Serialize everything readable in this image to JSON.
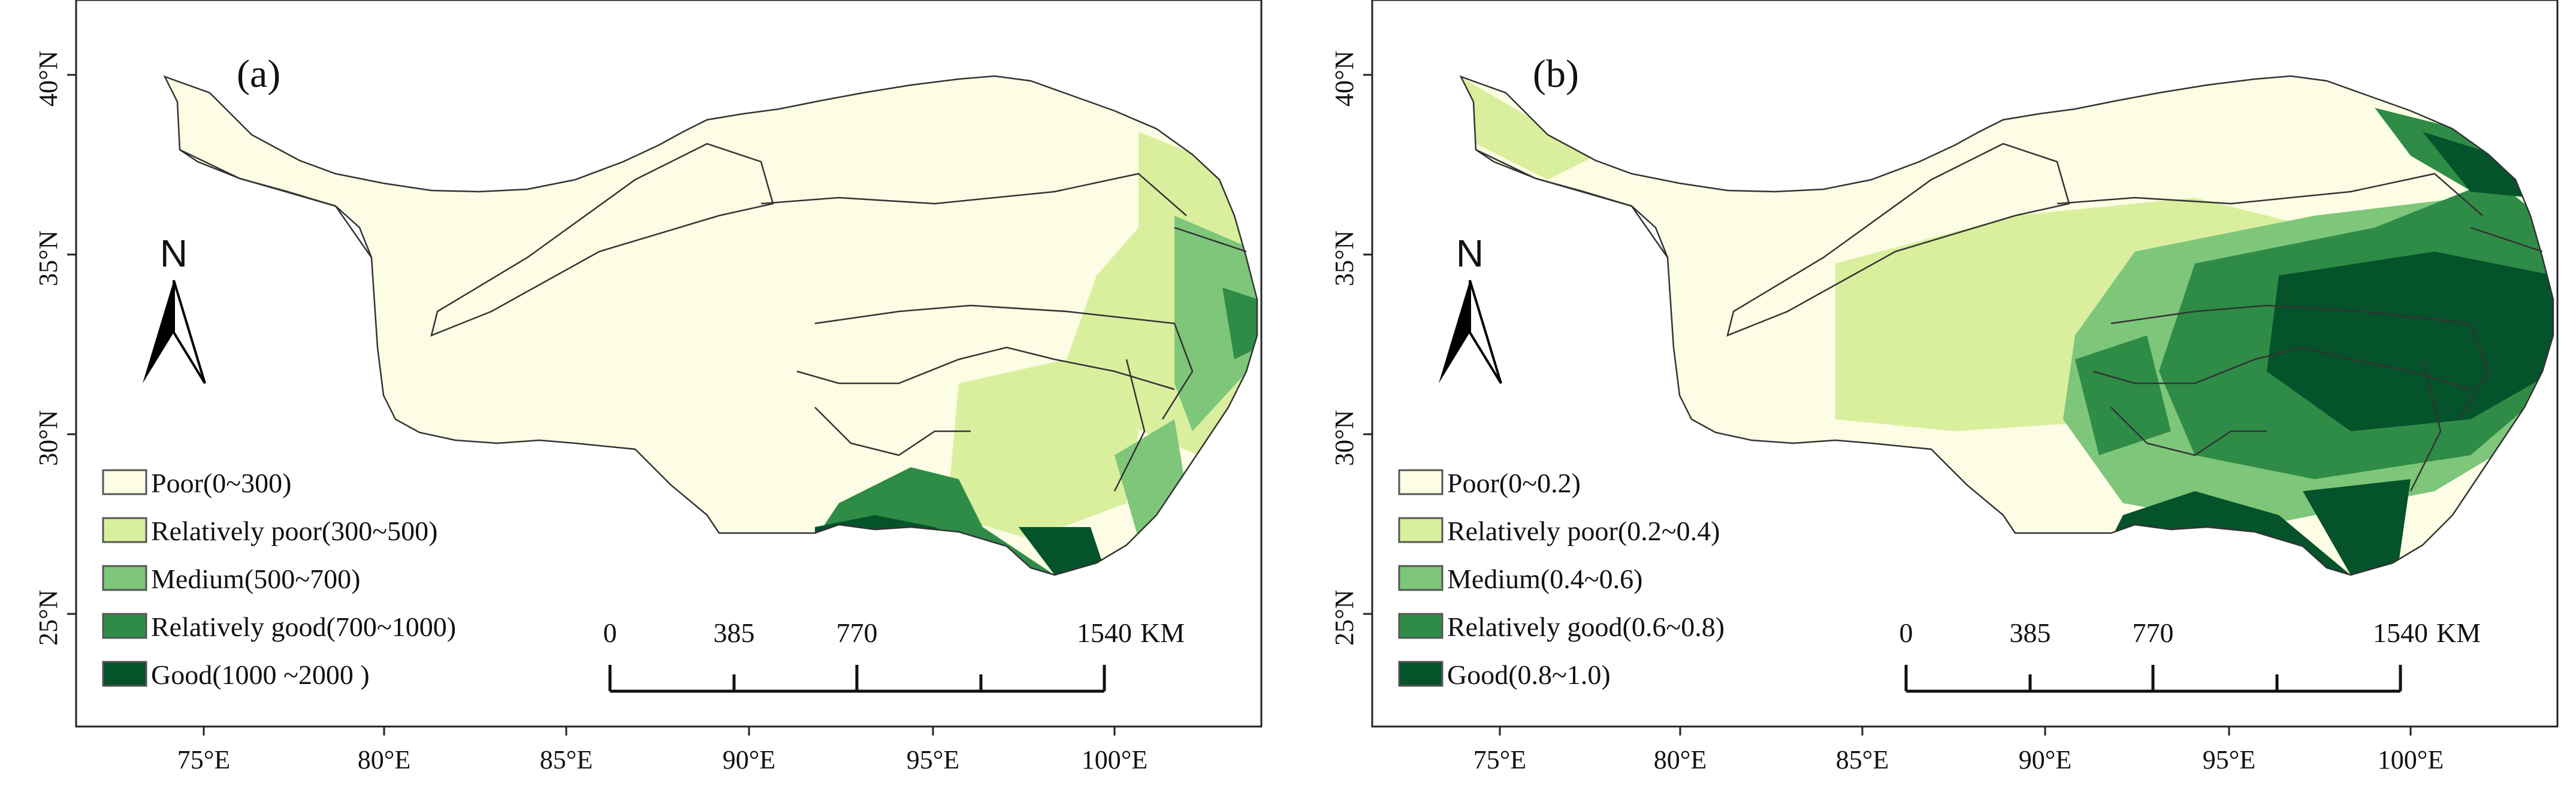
{
  "colors": {
    "poor": "#fcfde4",
    "relatively_poor": "#d9ef9e",
    "medium": "#7dc67a",
    "relatively_good": "#2f8c47",
    "good": "#04532a",
    "frame": "#222222",
    "boundary": "#333333"
  },
  "axes": {
    "lat_labels": [
      "40°N",
      "35°N",
      "30°N",
      "25°N"
    ],
    "lon_labels": [
      "75°E",
      "80°E",
      "85°E",
      "90°E",
      "95°E",
      "100°E"
    ]
  },
  "north_arrow": {
    "letter": "N",
    "icon": "north-arrow-icon"
  },
  "scale": {
    "ticks": [
      "0",
      "385",
      "770",
      "1540"
    ],
    "unit": "KM"
  },
  "panels": [
    {
      "label": "(a)",
      "legend": [
        {
          "label": "Poor(0~300)",
          "color": "#fcfde4"
        },
        {
          "label": "Relatively poor(300~500)",
          "color": "#d9ef9e"
        },
        {
          "label": "Medium(500~700)",
          "color": "#7dc67a"
        },
        {
          "label": "Relatively good(700~1000)",
          "color": "#2f8c47"
        },
        {
          "label": "Good(1000 ~2000 )",
          "color": "#04532a"
        }
      ]
    },
    {
      "label": "(b)",
      "legend": [
        {
          "label": "Poor(0~0.2)",
          "color": "#fcfde4"
        },
        {
          "label": "Relatively poor(0.2~0.4)",
          "color": "#d9ef9e"
        },
        {
          "label": "Medium(0.4~0.6)",
          "color": "#7dc67a"
        },
        {
          "label": "Relatively good(0.6~0.8)",
          "color": "#2f8c47"
        },
        {
          "label": "Good(0.8~1.0)",
          "color": "#04532a"
        }
      ]
    }
  ]
}
